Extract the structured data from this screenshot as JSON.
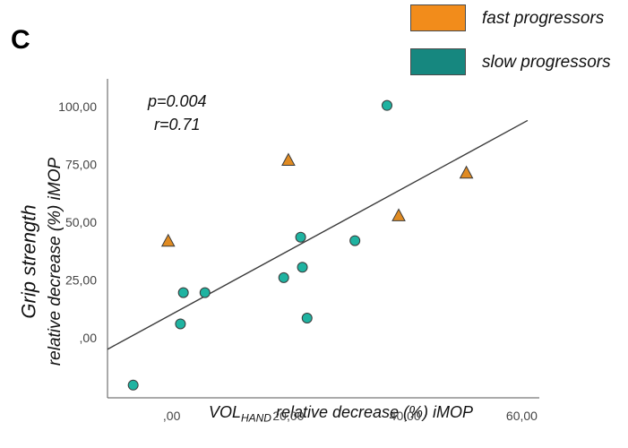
{
  "panel_letter": "C",
  "legend": [
    {
      "label": "fast progressors",
      "color": "#f28c1b"
    },
    {
      "label": "slow progressors",
      "color": "#16877f"
    }
  ],
  "annotations": {
    "p": "p=0.004",
    "r": "r=0.71"
  },
  "colors": {
    "fast_marker": "#e08b22",
    "slow_marker": "#1fb3a1",
    "marker_edge": "#3a3a3a",
    "axis": "#555555",
    "fit_line": "#3a3a3a"
  },
  "chart_data": {
    "type": "scatter",
    "title": "",
    "xlabel_main": "VOL",
    "xlabel_sub": "HAND",
    "xlabel_rest": " relative decrease (%) iMOP",
    "ylabel_line1": "Grip strength",
    "ylabel_line2": "relative decrease (%) iMOP",
    "xlim": [
      -11,
      63
    ],
    "ylim": [
      -26,
      112
    ],
    "x_ticks": [
      0,
      20,
      40,
      60
    ],
    "x_tick_labels": [
      ",00",
      "20,00",
      "40,00",
      "60,00"
    ],
    "y_ticks": [
      0,
      25,
      50,
      75,
      100
    ],
    "y_tick_labels": [
      ",00",
      "25,00",
      "50,00",
      "75,00",
      "100,00"
    ],
    "grid": false,
    "legend_position": "top-right",
    "fit_line": {
      "x": [
        -11,
        61
      ],
      "y": [
        -5,
        94
      ]
    },
    "series": [
      {
        "name": "fast progressors",
        "marker": "triangle",
        "points": [
          [
            -0.6,
            41.5
          ],
          [
            20,
            76.5
          ],
          [
            38.9,
            52.5
          ],
          [
            50.5,
            71
          ]
        ]
      },
      {
        "name": "slow progressors",
        "marker": "circle",
        "points": [
          [
            -6.6,
            -20.5
          ],
          [
            1.5,
            6
          ],
          [
            2,
            19.5
          ],
          [
            5.7,
            19.5
          ],
          [
            19.2,
            26
          ],
          [
            22.1,
            43.5
          ],
          [
            22.4,
            30.5
          ],
          [
            23.2,
            8.5
          ],
          [
            31.4,
            42
          ],
          [
            36.9,
            100.5
          ]
        ]
      }
    ]
  }
}
